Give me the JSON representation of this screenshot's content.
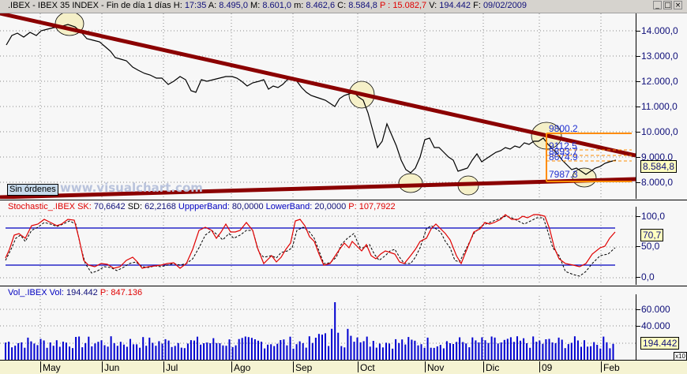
{
  "window": {
    "symbol": ".IBEX",
    "name": "IBEX 35 INDEX",
    "period": "Fin de día 1 días",
    "h_label": "H:",
    "h_value": "17:35",
    "a_label": "A:",
    "a_value": "8.495,0",
    "m_label": "M:",
    "m_value": "8.601,0",
    "min_label": "m:",
    "min_value": "8.462,6",
    "c_label": "C:",
    "c_value": "8.584,8",
    "p_label": "P :",
    "p_value": "15.082,7",
    "v_label": "V:",
    "v_value": "194.442",
    "f_label": "F:",
    "f_value": "09/02/2009",
    "buttons": {
      "minimize": "_",
      "maximize": "□",
      "close": "×"
    }
  },
  "price_panel": {
    "y_ticks": [
      "14.000,0",
      "13.000,0",
      "12.000,0",
      "11.000,0",
      "10.000,0",
      "9.000,0",
      "8.000,0"
    ],
    "last_value": "8.584,8",
    "orders_button": "Sin órdenes",
    "watermark": "www.visualchart.com",
    "fibonacci_levels": [
      "9800.2",
      "9112.5",
      "8893.7",
      "8674.9",
      "7987.3"
    ],
    "colors": {
      "trendline": "#8b0000",
      "fibonacci": "#ff8c00",
      "circles": "#f5f0c8"
    }
  },
  "stochastic_panel": {
    "name": "Stochastic_.IBEX",
    "sk_label": "SK:",
    "sk_value": "70,6642",
    "sd_label": "SD:",
    "sd_value": "62,2168",
    "upper_label": "UppperBand:",
    "upper_value": "80,0000",
    "lower_label": "LowerBand:",
    "lower_value": "20,0000",
    "p_label": "P:",
    "p_value": "107,7922",
    "y_ticks": [
      "100,0",
      "50,0",
      "0,0"
    ],
    "last_value": "70,7",
    "colors": {
      "sk": "#e00000",
      "sd": "#000000",
      "bands": "#0000c0"
    }
  },
  "volume_panel": {
    "name": "Vol_.IBEX",
    "vol_label": "Vol:",
    "vol_value": "194.442",
    "p_label": "P:",
    "p_value": "847.136",
    "y_ticks": [
      "60.000",
      "40.000"
    ],
    "last_value": "194.442",
    "multiplier": "x10",
    "colors": {
      "bars": "#0000d0"
    }
  },
  "x_axis": {
    "months": [
      "May",
      "Jun",
      "Jul",
      "Ago",
      "Sep",
      "Oct",
      "Nov",
      "Dic",
      "09",
      "Feb"
    ]
  }
}
